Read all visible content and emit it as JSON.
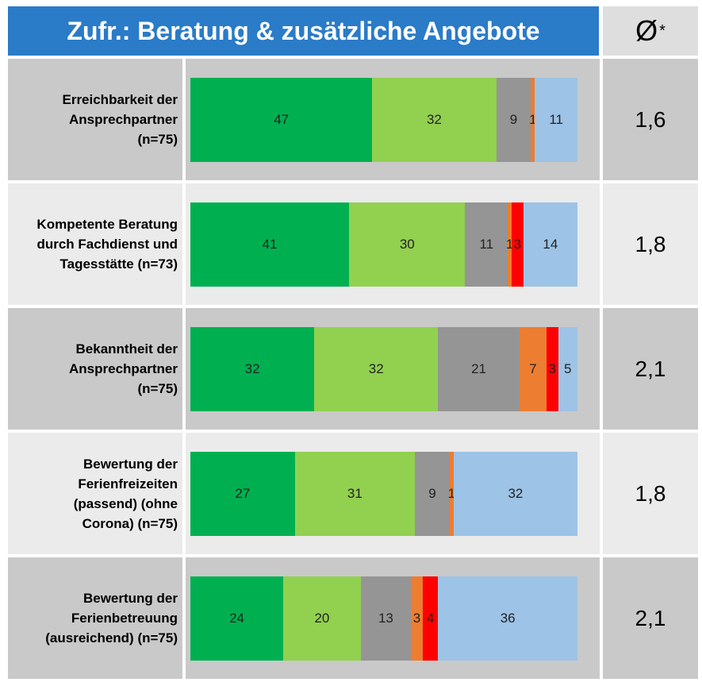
{
  "chart_data": {
    "type": "stacked-bar",
    "title": "Zufr.: Beratung & zusätzliche Angebote",
    "average_header": "Ø",
    "average_note": "*",
    "categories": [
      "Erreichbarkeit der Ansprechpartner (n=75)",
      "Kompetente Beratung durch Fachdienst und Tagesstätte (n=73)",
      "Bekanntheit der Ansprechpartner (n=75)",
      "Bewertung der Ferienfreizeiten (passend) (ohne Corona) (n=75)",
      "Bewertung der Ferienbetreuung (ausreichend) (n=75)"
    ],
    "series": [
      {
        "color": "#00b050",
        "values": [
          47,
          41,
          32,
          27,
          24
        ]
      },
      {
        "color": "#92d050",
        "values": [
          32,
          30,
          32,
          31,
          20
        ]
      },
      {
        "color": "#959595",
        "values": [
          9,
          11,
          21,
          9,
          13
        ]
      },
      {
        "color": "#ed7d31",
        "values": [
          1,
          1,
          7,
          1,
          3
        ]
      },
      {
        "color": "#ff0000",
        "values": [
          null,
          3,
          3,
          null,
          4
        ]
      },
      {
        "color": "#9dc3e6",
        "values": [
          11,
          14,
          5,
          32,
          36
        ]
      }
    ],
    "averages": [
      "1,6",
      "1,8",
      "2,1",
      "1,8",
      "2,1"
    ],
    "xlim": [
      0,
      100
    ]
  }
}
